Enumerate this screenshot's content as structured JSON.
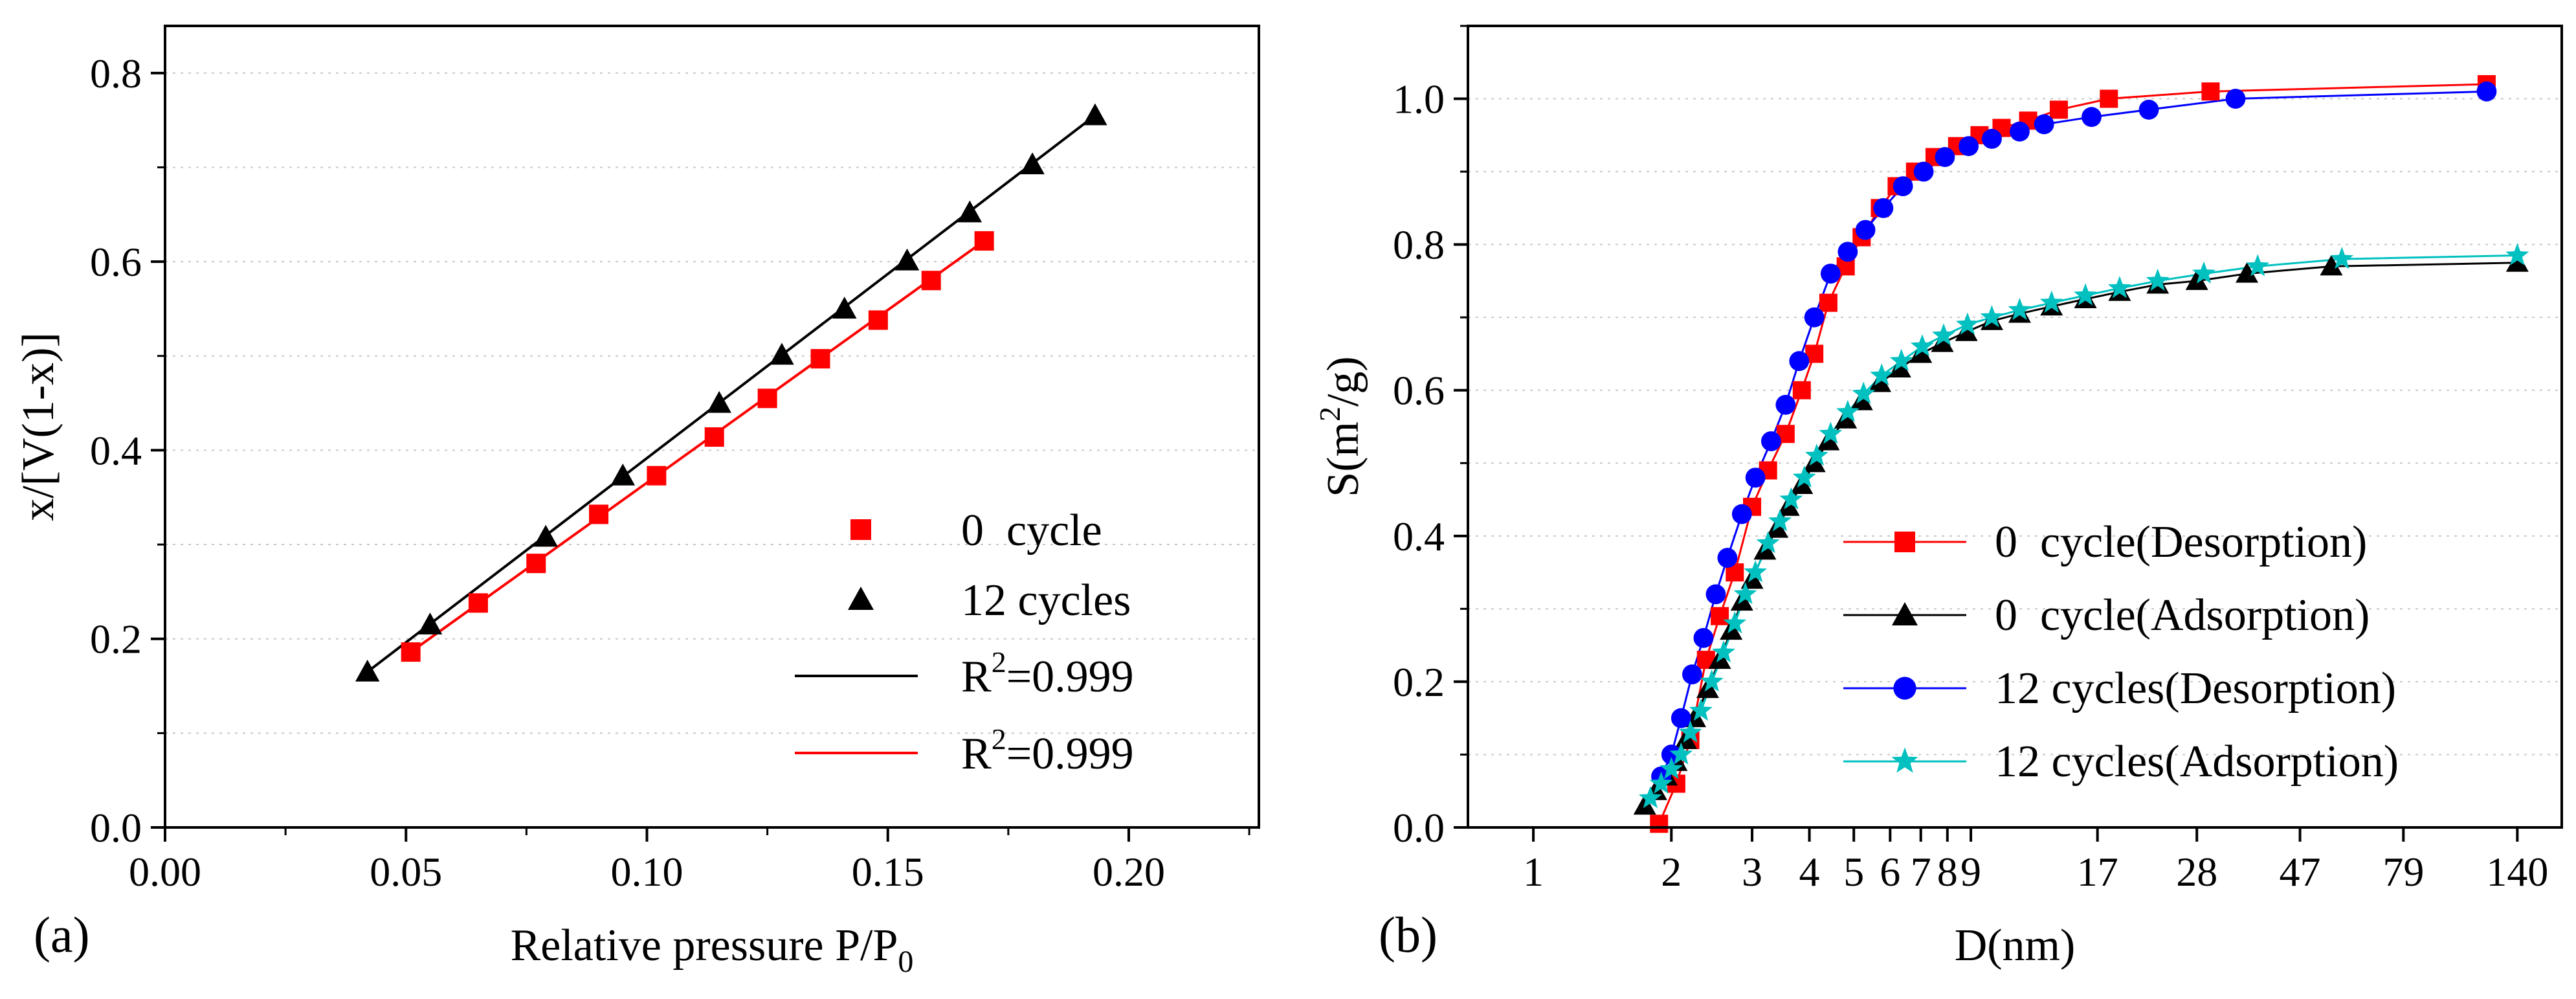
{
  "chart_data": [
    {
      "type": "scatter",
      "panel_label": "(a)",
      "xlabel_main": "Relative pressure P/P",
      "xlabel_sub": "0",
      "ylabel": "x/[V(1-x)]",
      "xlim": [
        0.0,
        0.227
      ],
      "ylim": [
        0.0,
        0.85
      ],
      "xticks": [
        0.0,
        0.05,
        0.1,
        0.15,
        0.2
      ],
      "xtick_labels": [
        "0.00",
        "0.05",
        "0.10",
        "0.15",
        "0.20"
      ],
      "yticks": [
        0.0,
        0.2,
        0.4,
        0.6,
        0.8
      ],
      "ytick_labels": [
        "0.0",
        "0.2",
        "0.4",
        "0.6",
        "0.8"
      ],
      "grid": "horizontal dotted",
      "legend_position": "bottom-right",
      "series": [
        {
          "name": "0  cycle",
          "marker": "square",
          "color": "#ff0000",
          "x": [
            0.051,
            0.065,
            0.077,
            0.09,
            0.102,
            0.114,
            0.125,
            0.136,
            0.148,
            0.159,
            0.17
          ],
          "y": [
            0.186,
            0.238,
            0.28,
            0.332,
            0.373,
            0.414,
            0.455,
            0.497,
            0.538,
            0.58,
            0.622
          ]
        },
        {
          "name": "12 cycles",
          "marker": "triangle",
          "color": "#000000",
          "x": [
            0.042,
            0.055,
            0.079,
            0.095,
            0.115,
            0.128,
            0.141,
            0.154,
            0.167,
            0.18,
            0.193
          ],
          "y": [
            0.165,
            0.215,
            0.308,
            0.373,
            0.45,
            0.501,
            0.55,
            0.601,
            0.652,
            0.703,
            0.755
          ]
        }
      ],
      "fits": [
        {
          "name_main": "R",
          "name_sup": "2",
          "name_rest": "=0.999",
          "color": "#000000",
          "x": [
            0.042,
            0.193
          ],
          "y": [
            0.165,
            0.755
          ]
        },
        {
          "name_main": "R",
          "name_sup": "2",
          "name_rest": "=0.999",
          "color": "#ff0000",
          "x": [
            0.051,
            0.17
          ],
          "y": [
            0.186,
            0.622
          ]
        }
      ]
    },
    {
      "type": "line",
      "panel_label": "(b)",
      "xlabel": "D(nm)",
      "ylabel_main": "S(m",
      "ylabel_sup": "2",
      "ylabel_rest": "/g)",
      "xscale": "log",
      "xlim": [
        0.72,
        175
      ],
      "ylim": [
        0.0,
        1.1
      ],
      "xticks": [
        1,
        2,
        3,
        4,
        5,
        6,
        7,
        8,
        9,
        17,
        28,
        47,
        79,
        140
      ],
      "xtick_labels": [
        "1",
        "2",
        "3",
        "4",
        "5",
        "6",
        "7",
        "8",
        "9",
        "17",
        "28",
        "47",
        "79",
        "140"
      ],
      "yticks": [
        0.0,
        0.2,
        0.4,
        0.6,
        0.8,
        1.0
      ],
      "ytick_labels": [
        "0.0",
        "0.2",
        "0.4",
        "0.6",
        "0.8",
        "1.0"
      ],
      "grid": "horizontal dotted",
      "legend_position": "bottom-right",
      "series": [
        {
          "name": "0  cycle(Desorption)",
          "marker": "square",
          "color": "#ff0000",
          "x": [
            1.88,
            2.05,
            2.2,
            2.38,
            2.55,
            2.75,
            3.0,
            3.25,
            3.55,
            3.85,
            4.1,
            4.4,
            4.8,
            5.2,
            5.7,
            6.2,
            6.8,
            7.5,
            8.4,
            9.4,
            10.5,
            12.0,
            14.0,
            18.0,
            30.0,
            120.0
          ],
          "y": [
            0.005,
            0.06,
            0.12,
            0.23,
            0.29,
            0.35,
            0.44,
            0.49,
            0.54,
            0.6,
            0.65,
            0.72,
            0.77,
            0.81,
            0.85,
            0.88,
            0.9,
            0.92,
            0.935,
            0.95,
            0.96,
            0.97,
            0.985,
            1.0,
            1.01,
            1.02
          ]
        },
        {
          "name": "0  cycle(Adsorption)",
          "marker": "triangle",
          "color": "#000000",
          "x": [
            1.75,
            1.85,
            1.95,
            2.05,
            2.15,
            2.25,
            2.4,
            2.55,
            2.7,
            2.85,
            3.0,
            3.2,
            3.4,
            3.6,
            3.85,
            4.1,
            4.4,
            4.8,
            5.2,
            5.7,
            6.3,
            7.0,
            7.8,
            8.8,
            10.0,
            11.5,
            13.5,
            16.0,
            19.0,
            23.0,
            28.0,
            36.0,
            55.0,
            140.0
          ],
          "y": [
            0.03,
            0.05,
            0.07,
            0.09,
            0.12,
            0.15,
            0.19,
            0.23,
            0.27,
            0.31,
            0.34,
            0.38,
            0.41,
            0.44,
            0.47,
            0.5,
            0.53,
            0.56,
            0.585,
            0.61,
            0.63,
            0.65,
            0.665,
            0.68,
            0.695,
            0.705,
            0.715,
            0.725,
            0.735,
            0.745,
            0.75,
            0.76,
            0.77,
            0.775
          ]
        },
        {
          "name": "12 cycles(Desorption)",
          "marker": "circle",
          "color": "#0000ff",
          "x": [
            1.9,
            2.0,
            2.1,
            2.22,
            2.35,
            2.5,
            2.65,
            2.85,
            3.05,
            3.3,
            3.55,
            3.8,
            4.1,
            4.45,
            4.85,
            5.3,
            5.8,
            6.4,
            7.1,
            7.9,
            8.9,
            10.0,
            11.5,
            13.0,
            16.5,
            22.0,
            34.0,
            120.0
          ],
          "y": [
            0.07,
            0.1,
            0.15,
            0.21,
            0.26,
            0.32,
            0.37,
            0.43,
            0.48,
            0.53,
            0.58,
            0.64,
            0.7,
            0.76,
            0.79,
            0.82,
            0.85,
            0.88,
            0.9,
            0.92,
            0.935,
            0.945,
            0.955,
            0.965,
            0.975,
            0.985,
            1.0,
            1.01
          ]
        },
        {
          "name": "12 cycles(Adsorption)",
          "marker": "star",
          "color": "#00c0c0",
          "x": [
            1.8,
            1.9,
            2.0,
            2.1,
            2.2,
            2.32,
            2.45,
            2.6,
            2.75,
            2.9,
            3.05,
            3.25,
            3.45,
            3.65,
            3.9,
            4.15,
            4.45,
            4.85,
            5.25,
            5.75,
            6.35,
            7.05,
            7.85,
            8.85,
            10.0,
            11.5,
            13.5,
            16.0,
            19.0,
            23.0,
            29.0,
            38.0,
            58.0,
            140.0
          ],
          "y": [
            0.04,
            0.06,
            0.08,
            0.1,
            0.13,
            0.16,
            0.2,
            0.24,
            0.28,
            0.32,
            0.35,
            0.39,
            0.42,
            0.45,
            0.48,
            0.51,
            0.54,
            0.57,
            0.595,
            0.62,
            0.64,
            0.66,
            0.675,
            0.69,
            0.7,
            0.71,
            0.72,
            0.73,
            0.74,
            0.75,
            0.76,
            0.77,
            0.78,
            0.785
          ]
        }
      ]
    }
  ]
}
